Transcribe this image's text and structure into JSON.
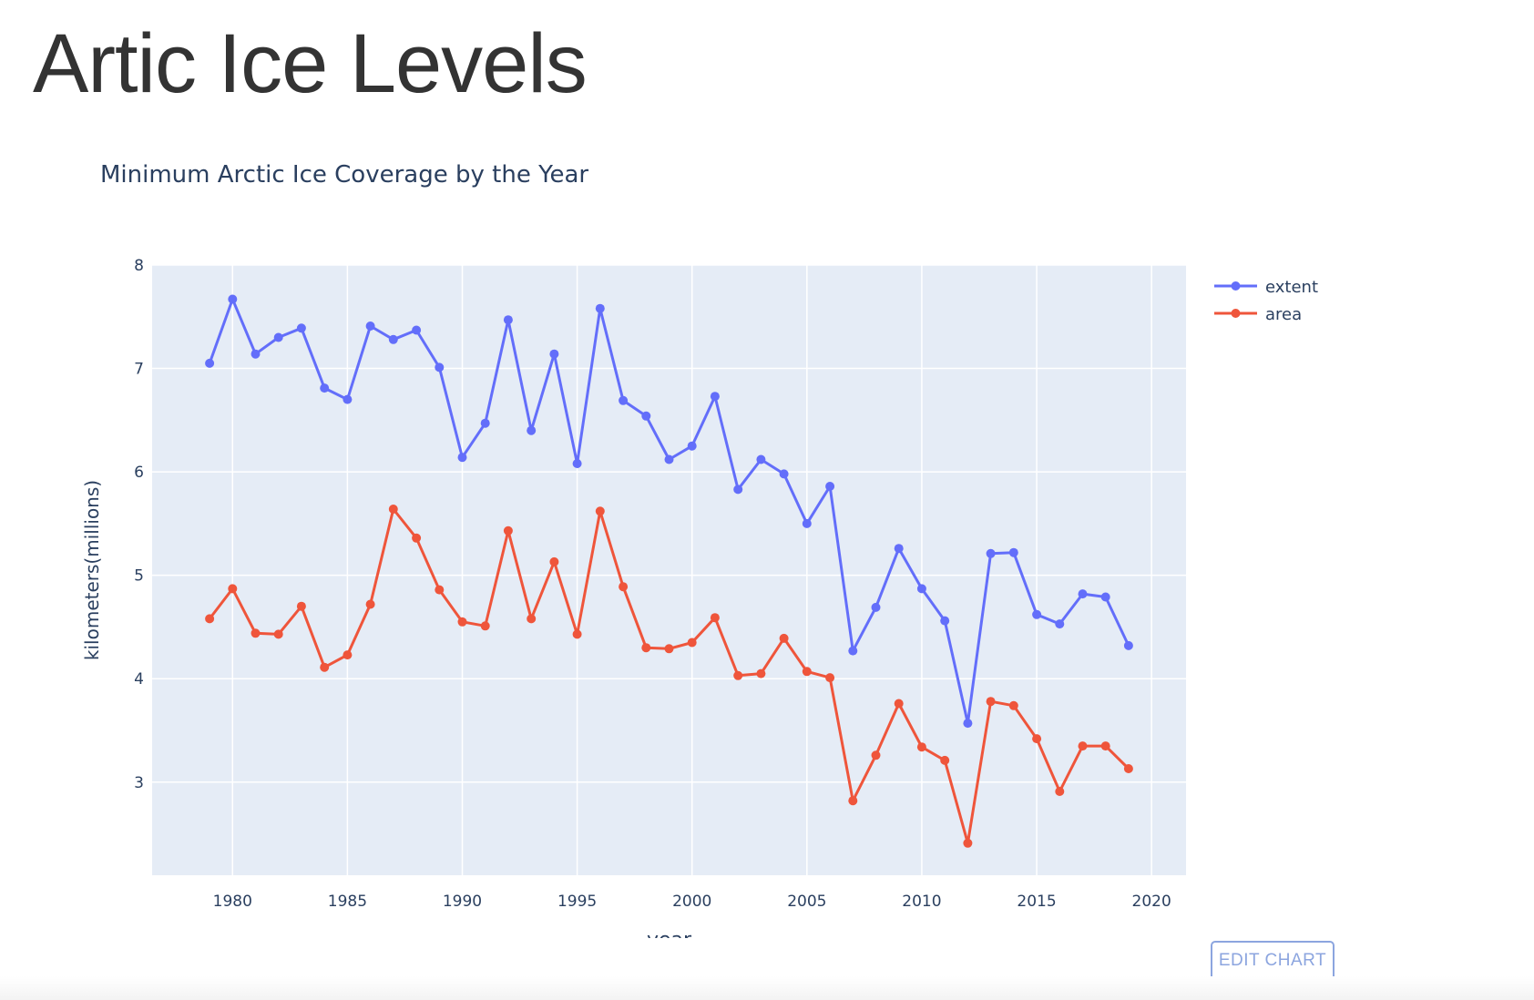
{
  "page": {
    "heading": "Artic Ice Levels"
  },
  "edit_button": {
    "label": "EDIT CHART"
  },
  "colors": {
    "plot_background": "#e5ecf6",
    "grid": "#ffffff",
    "text": "#2a3f5f",
    "extent": "#636efa",
    "area": "#ef553b",
    "edit_button": "#8ca5df"
  },
  "chart_data": {
    "type": "line",
    "title": "Minimum Arctic Ice Coverage by the Year",
    "xlabel": "year",
    "ylabel": "kilometers(millions)",
    "xlim": [
      1976.5,
      2021.5
    ],
    "ylim": [
      2.1,
      8.0
    ],
    "xticks": [
      1980,
      1985,
      1990,
      1995,
      2000,
      2005,
      2010,
      2015,
      2020
    ],
    "yticks": [
      3,
      4,
      5,
      6,
      7,
      8
    ],
    "grid": true,
    "legend_position": "top-right",
    "x": [
      1979,
      1980,
      1981,
      1982,
      1983,
      1984,
      1985,
      1986,
      1987,
      1988,
      1989,
      1990,
      1991,
      1992,
      1993,
      1994,
      1995,
      1996,
      1997,
      1998,
      1999,
      2000,
      2001,
      2002,
      2003,
      2004,
      2005,
      2006,
      2007,
      2008,
      2009,
      2010,
      2011,
      2012,
      2013,
      2014,
      2015,
      2016,
      2017,
      2018,
      2019
    ],
    "series": [
      {
        "name": "extent",
        "values": [
          7.05,
          7.67,
          7.14,
          7.3,
          7.39,
          6.81,
          6.7,
          7.41,
          7.28,
          7.37,
          7.01,
          6.14,
          6.47,
          7.47,
          6.4,
          7.14,
          6.08,
          7.58,
          6.69,
          6.54,
          6.12,
          6.25,
          6.73,
          5.83,
          6.12,
          5.98,
          5.5,
          5.86,
          4.27,
          4.69,
          5.26,
          4.87,
          4.56,
          3.57,
          5.21,
          5.22,
          4.62,
          4.53,
          4.82,
          4.79,
          4.32
        ]
      },
      {
        "name": "area",
        "values": [
          4.58,
          4.87,
          4.44,
          4.43,
          4.7,
          4.11,
          4.23,
          4.72,
          5.64,
          5.36,
          4.86,
          4.55,
          4.51,
          5.43,
          4.58,
          5.13,
          4.43,
          5.62,
          4.89,
          4.3,
          4.29,
          4.35,
          4.59,
          4.03,
          4.05,
          4.39,
          4.07,
          4.01,
          2.82,
          3.26,
          3.76,
          3.34,
          3.21,
          2.41,
          3.78,
          3.74,
          3.42,
          2.91,
          3.35,
          3.35,
          3.13
        ]
      }
    ]
  }
}
